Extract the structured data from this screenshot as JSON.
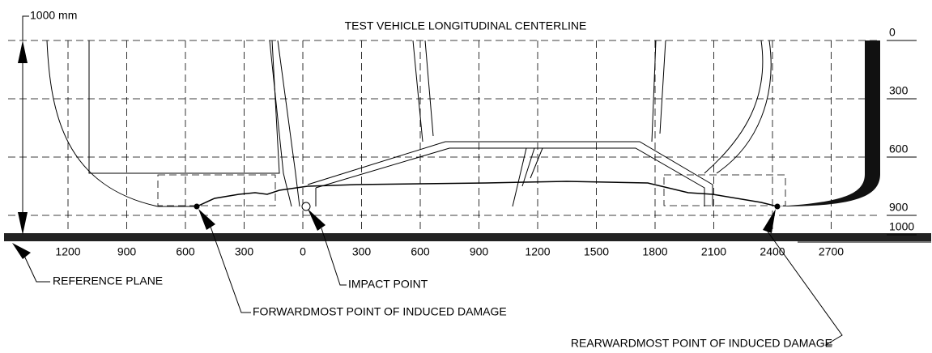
{
  "title": "TEST VEHICLE LONGITUDINAL CENTERLINE",
  "scale_label": "1000 mm",
  "x_labels": [
    1200,
    900,
    600,
    300,
    0,
    300,
    600,
    900,
    1200,
    1500,
    1800,
    2100,
    2400,
    2700
  ],
  "y_labels": [
    0,
    300,
    600,
    900,
    1000
  ],
  "callouts": {
    "reference_plane": "REFERENCE PLANE",
    "impact_point": "IMPACT POINT",
    "forwardmost": "FORWARDMOST POINT OF INDUCED DAMAGE",
    "rearwardmost": "REARWARDMOST POINT OF INDUCED DAMAGE"
  }
}
